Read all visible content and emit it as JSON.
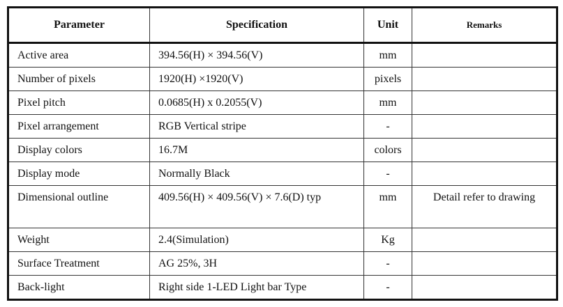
{
  "headers": [
    "Parameter",
    "Specification",
    "Unit",
    "Remarks"
  ],
  "rows": [
    {
      "parameter": "Active area",
      "specification": "394.56(H) × 394.56(V)",
      "unit": "mm",
      "remarks": ""
    },
    {
      "parameter": "Number of pixels",
      "specification": "1920(H) ×1920(V)",
      "unit": "pixels",
      "remarks": ""
    },
    {
      "parameter": "Pixel pitch",
      "specification": "0.0685(H) x 0.2055(V)",
      "unit": "mm",
      "remarks": ""
    },
    {
      "parameter": "Pixel arrangement",
      "specification": "RGB Vertical stripe",
      "unit": "-",
      "remarks": ""
    },
    {
      "parameter": "Display colors",
      "specification": "16.7M",
      "unit": "colors",
      "remarks": ""
    },
    {
      "parameter": "Display mode",
      "specification": "Normally Black",
      "unit": "-",
      "remarks": ""
    },
    {
      "parameter": "Dimensional outline",
      "specification": "409.56(H) × 409.56(V) × 7.6(D) typ",
      "unit": "mm",
      "remarks": "Detail refer to drawing"
    },
    {
      "parameter": "Weight",
      "specification": "2.4(Simulation)",
      "unit": "Kg",
      "remarks": ""
    },
    {
      "parameter": "Surface Treatment",
      "specification": "AG 25%, 3H",
      "unit": "-",
      "remarks": ""
    },
    {
      "parameter": "Back-light",
      "specification": "Right side 1-LED Light bar Type",
      "unit": "-",
      "remarks": ""
    }
  ]
}
